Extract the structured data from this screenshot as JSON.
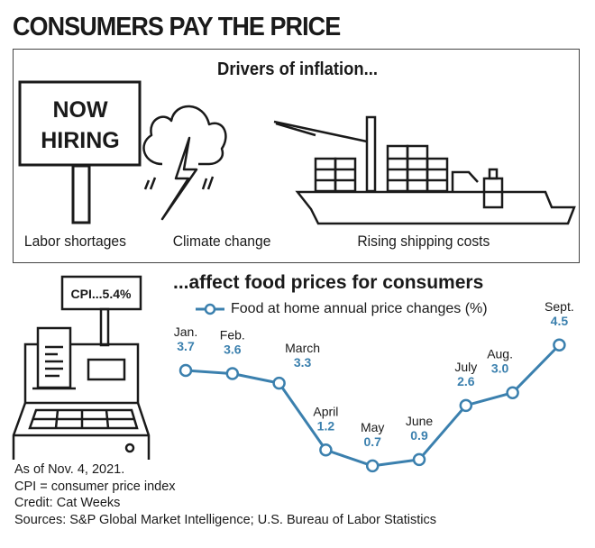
{
  "title": "CONSUMERS PAY THE PRICE",
  "drivers": {
    "heading": "Drivers of inflation...",
    "sign_text": [
      "NOW",
      "HIRING"
    ],
    "items": [
      {
        "label": "Labor shortages",
        "icon": "now-hiring-sign-icon"
      },
      {
        "label": "Climate change",
        "icon": "storm-cloud-icon"
      },
      {
        "label": "Rising shipping costs",
        "icon": "cargo-ship-icon"
      }
    ]
  },
  "register": {
    "display": "CPI...5.4%",
    "icon": "cash-register-icon"
  },
  "chart_data": {
    "type": "line",
    "title": "...affect food prices for consumers",
    "legend": "Food at home annual price changes (%)",
    "legend_placement": "top",
    "categories": [
      "Jan.",
      "Feb.",
      "March",
      "April",
      "May",
      "June",
      "July",
      "Aug.",
      "Sept."
    ],
    "values": [
      3.7,
      3.6,
      3.3,
      1.2,
      0.7,
      0.9,
      2.6,
      3.0,
      4.5
    ],
    "value_labels": [
      "3.7",
      "3.6",
      "3.3",
      "1.2",
      "0.7",
      "0.9",
      "2.6",
      "3.0",
      "4.5"
    ],
    "xlabel": "",
    "ylabel": "",
    "grid": false,
    "color": "#3b80ae"
  },
  "footer": [
    "As of Nov. 4, 2021.",
    "CPI = consumer price index",
    "Credit: Cat Weeks",
    "Sources: S&P Global Market Intelligence; U.S. Bureau of Labor Statistics"
  ]
}
